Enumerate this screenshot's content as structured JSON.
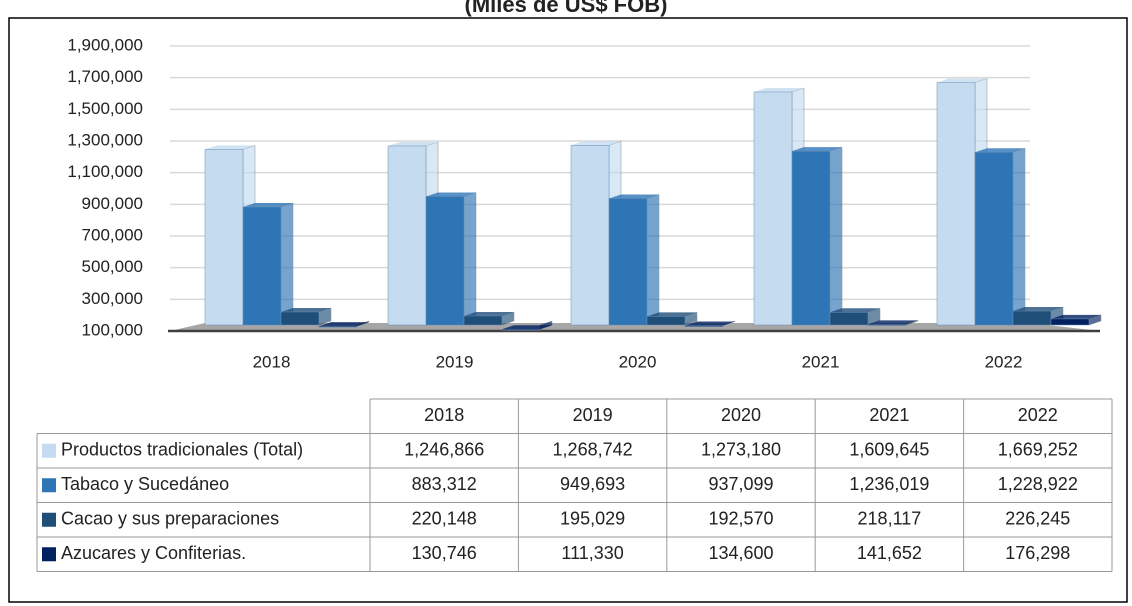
{
  "chart_data": {
    "type": "bar3d",
    "title": "(Miles de US$ FOB)",
    "categories": [
      "2018",
      "2019",
      "2020",
      "2021",
      "2022"
    ],
    "series": [
      {
        "name": "Productos tradicionales (Total)",
        "color": "#c5dcf0",
        "values": [
          1246866,
          1268742,
          1273180,
          1609645,
          1669252
        ],
        "value_labels": [
          "1,246,866",
          "1,268,742",
          "1,273,180",
          "1,609,645",
          "1,669,252"
        ]
      },
      {
        "name": "Tabaco y Sucedáneo",
        "color": "#2e75b6",
        "values": [
          883312,
          949693,
          937099,
          1236019,
          1228922
        ],
        "value_labels": [
          "883,312",
          "949,693",
          "937,099",
          "1,236,019",
          "1,228,922"
        ]
      },
      {
        "name": "Cacao y sus preparaciones",
        "color": "#1f4e79",
        "values": [
          220148,
          195029,
          192570,
          218117,
          226245
        ],
        "value_labels": [
          "220,148",
          "195,029",
          "192,570",
          "218,117",
          "226,245"
        ]
      },
      {
        "name": "Azucares y  Confiterias.",
        "color": "#002060",
        "values": [
          130746,
          111330,
          134600,
          141652,
          176298
        ],
        "value_labels": [
          "130,746",
          "111,330",
          "134,600",
          "141,652",
          "176,298"
        ]
      }
    ],
    "ylim": [
      100000,
      1900000
    ],
    "yticks": [
      {
        "value": 100000,
        "label": "100,000"
      },
      {
        "value": 300000,
        "label": "300,000"
      },
      {
        "value": 500000,
        "label": "500,000"
      },
      {
        "value": 700000,
        "label": "700,000"
      },
      {
        "value": 900000,
        "label": "900,000"
      },
      {
        "value": 1100000,
        "label": "1,100,000"
      },
      {
        "value": 1300000,
        "label": "1,300,000"
      },
      {
        "value": 1500000,
        "label": "1,500,000"
      },
      {
        "value": 1700000,
        "label": "1,700,000"
      },
      {
        "value": 1900000,
        "label": "1,900,000"
      }
    ],
    "grid": true
  }
}
